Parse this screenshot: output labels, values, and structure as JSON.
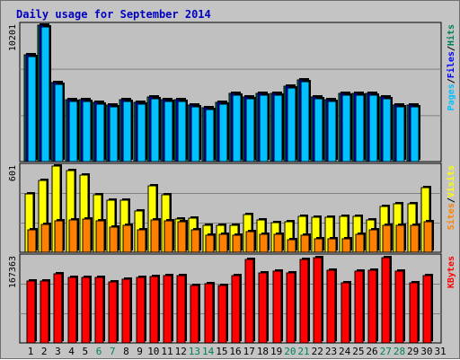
{
  "title": "Daily usage for September 2014",
  "colors": {
    "background": "#c4c4c4",
    "panel": "#c0c0c0",
    "title": "#0000c0",
    "hits": "#00805c",
    "files": "#0000ff",
    "pages": "#00c0ff",
    "visits": "#ffff00",
    "sites": "#ff8000",
    "kbytes": "#ff0000",
    "weekend_day": "#00805c",
    "weekday": "#000000"
  },
  "chart_data": [
    {
      "type": "bar",
      "title": "Daily usage for September 2014",
      "side_label": [
        "Pages",
        "Files",
        "Hits"
      ],
      "y_top_label": "10201",
      "ylim": [
        0,
        10201
      ],
      "categories": [
        "1",
        "2",
        "3",
        "4",
        "5",
        "6",
        "7",
        "8",
        "9",
        "10",
        "11",
        "12",
        "13",
        "14",
        "15",
        "16",
        "17",
        "18",
        "19",
        "20",
        "21",
        "22",
        "23",
        "24",
        "25",
        "26",
        "27",
        "28",
        "29",
        "30",
        "31"
      ],
      "series": [
        {
          "name": "Hits",
          "values": [
            7927,
            10133,
            5898,
            4628,
            4628,
            4427,
            4226,
            4628,
            4427,
            4829,
            4628,
            4628,
            4226,
            4025,
            4427,
            5092,
            4829,
            5092,
            5092,
            5629,
            6065,
            4829,
            4628,
            5092,
            5092,
            5092,
            4829,
            4226,
            4226,
            0,
            0
          ]
        },
        {
          "name": "Files",
          "values": [
            7927,
            10133,
            5898,
            4628,
            4628,
            4427,
            4226,
            4628,
            4427,
            4829,
            4628,
            4628,
            4226,
            4025,
            4427,
            5092,
            4829,
            5092,
            5092,
            5629,
            6065,
            4829,
            4628,
            5092,
            5092,
            5092,
            4829,
            4226,
            4226,
            0,
            0
          ]
        },
        {
          "name": "Pages",
          "values": [
            7794,
            10000,
            5765,
            4495,
            4495,
            4294,
            4093,
            4495,
            4294,
            4696,
            4495,
            4495,
            4093,
            3892,
            4294,
            4959,
            4696,
            4959,
            4959,
            5496,
            5932,
            4696,
            4495,
            4959,
            4959,
            4959,
            4696,
            4093,
            4093,
            0,
            0
          ]
        }
      ]
    },
    {
      "type": "bar",
      "side_label": [
        "Sites",
        "Visits"
      ],
      "y_top_label": "601",
      "ylim": [
        0,
        601
      ],
      "categories": [
        "1",
        "2",
        "3",
        "4",
        "5",
        "6",
        "7",
        "8",
        "9",
        "10",
        "11",
        "12",
        "13",
        "14",
        "15",
        "16",
        "17",
        "18",
        "19",
        "20",
        "21",
        "22",
        "23",
        "24",
        "25",
        "26",
        "27",
        "28",
        "29",
        "30",
        "31"
      ],
      "series": [
        {
          "name": "Visits",
          "values": [
            400,
            496,
            596,
            563,
            530,
            397,
            361,
            361,
            286,
            459,
            397,
            230,
            233,
            184,
            188,
            188,
            259,
            222,
            202,
            208,
            245,
            241,
            241,
            248,
            245,
            222,
            315,
            334,
            337,
            447,
            0
          ]
        },
        {
          "name": "Sites",
          "values": [
            156,
            192,
            218,
            222,
            228,
            218,
            176,
            185,
            152,
            225,
            218,
            211,
            152,
            120,
            125,
            120,
            140,
            125,
            125,
            89,
            115,
            92,
            95,
            95,
            125,
            152,
            185,
            185,
            185,
            208,
            0
          ]
        }
      ]
    },
    {
      "type": "bar",
      "side_label": [
        "KBytes"
      ],
      "y_top_label": "167363",
      "ylim": [
        0,
        167363
      ],
      "categories": [
        "1",
        "2",
        "3",
        "4",
        "5",
        "6",
        "7",
        "8",
        "9",
        "10",
        "11",
        "12",
        "13",
        "14",
        "15",
        "16",
        "17",
        "18",
        "19",
        "20",
        "21",
        "22",
        "23",
        "24",
        "25",
        "26",
        "27",
        "28",
        "29",
        "30",
        "31"
      ],
      "series": [
        {
          "name": "KBytes",
          "values": [
            119910,
            119910,
            132580,
            126240,
            126240,
            126240,
            117800,
            123080,
            126240,
            128350,
            129400,
            129400,
            109640,
            113440,
            109640,
            129400,
            160710,
            134840,
            138520,
            134840,
            159770,
            164550,
            140040,
            116250,
            138520,
            140040,
            163120,
            138520,
            116250,
            129400,
            0
          ]
        }
      ]
    }
  ]
}
